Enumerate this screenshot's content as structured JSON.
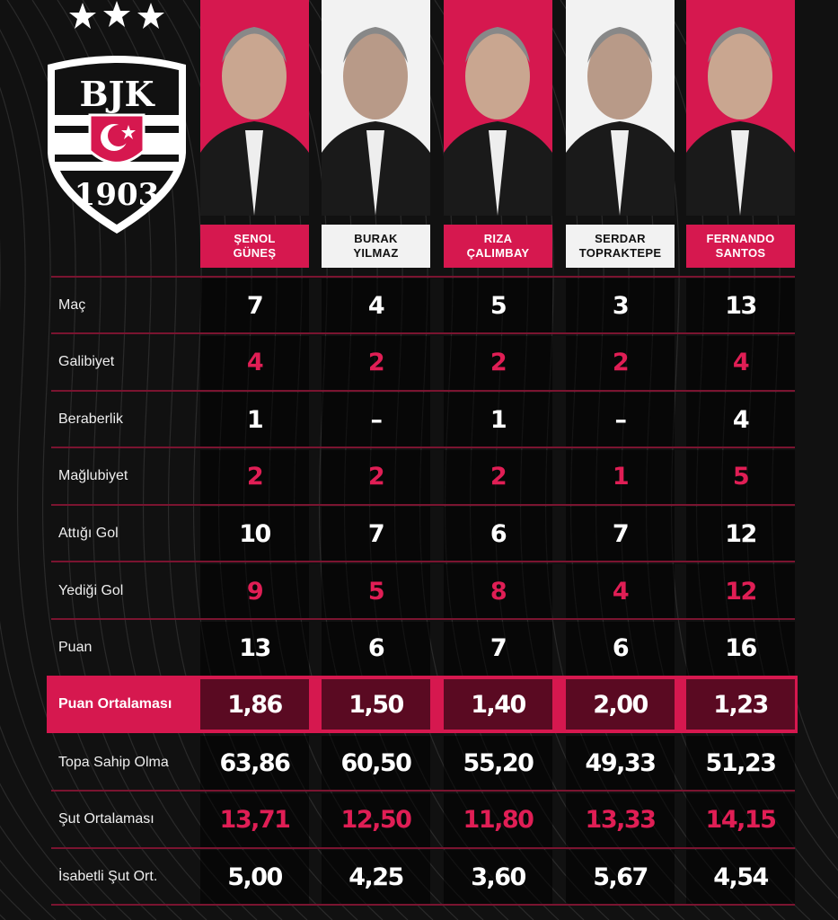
{
  "club": {
    "logo_text": "BJK 1903",
    "stars": 3
  },
  "colors": {
    "accent": "#d6184f",
    "background": "#111111",
    "value_red": "#e01e55"
  },
  "coaches": [
    {
      "name": "ŞENOL\nGÜNEŞ",
      "style": "red"
    },
    {
      "name": "BURAK\nYILMAZ",
      "style": "white"
    },
    {
      "name": "RIZA\nÇALIMBAY",
      "style": "red"
    },
    {
      "name": "SERDAR\nTOPRAKTEPE",
      "style": "white"
    },
    {
      "name": "FERNANDO\nSANTOS",
      "style": "red"
    }
  ],
  "rows": [
    {
      "label": "Maç",
      "color": "white",
      "values": [
        "7",
        "4",
        "5",
        "3",
        "13"
      ]
    },
    {
      "label": "Galibiyet",
      "color": "red",
      "values": [
        "4",
        "2",
        "2",
        "2",
        "4"
      ]
    },
    {
      "label": "Beraberlik",
      "color": "white",
      "values": [
        "1",
        "–",
        "1",
        "–",
        "4"
      ]
    },
    {
      "label": "Mağlubiyet",
      "color": "red",
      "values": [
        "2",
        "2",
        "2",
        "1",
        "5"
      ]
    },
    {
      "label": "Attığı Gol",
      "color": "white",
      "values": [
        "10",
        "7",
        "6",
        "7",
        "12"
      ]
    },
    {
      "label": "Yediği Gol",
      "color": "red",
      "values": [
        "9",
        "5",
        "8",
        "4",
        "12"
      ]
    },
    {
      "label": "Puan",
      "color": "white",
      "values": [
        "13",
        "6",
        "7",
        "6",
        "16"
      ]
    }
  ],
  "highlight": {
    "label": "Puan Ortalaması",
    "values": [
      "1,86",
      "1,50",
      "1,40",
      "2,00",
      "1,23"
    ]
  },
  "rows2": [
    {
      "label": "Topa Sahip Olma",
      "color": "white",
      "values": [
        "63,86",
        "60,50",
        "55,20",
        "49,33",
        "51,23"
      ]
    },
    {
      "label": "Şut Ortalaması",
      "color": "red",
      "values": [
        "13,71",
        "12,50",
        "11,80",
        "13,33",
        "14,15"
      ]
    },
    {
      "label": "İsabetli Şut Ort.",
      "color": "white",
      "values": [
        "5,00",
        "4,25",
        "3,60",
        "5,67",
        "4,54"
      ]
    }
  ]
}
